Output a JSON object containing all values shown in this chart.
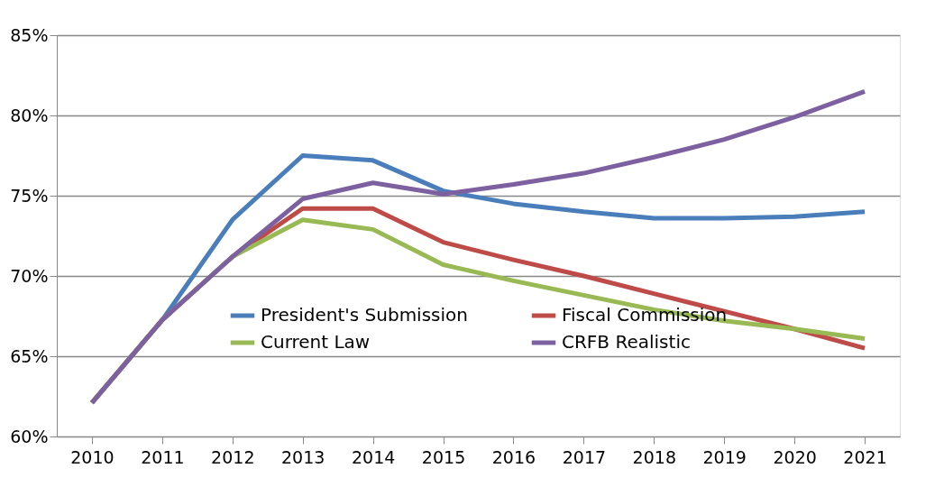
{
  "chart_data": {
    "type": "line",
    "categories": [
      "2010",
      "2011",
      "2012",
      "2013",
      "2014",
      "2015",
      "2016",
      "2017",
      "2018",
      "2019",
      "2020",
      "2021"
    ],
    "series": [
      {
        "name": "President's Submission",
        "color": "#4a7ebb",
        "values": [
          62.1,
          67.25,
          73.5,
          77.5,
          77.2,
          75.3,
          74.5,
          74.0,
          73.6,
          73.6,
          73.7,
          74.0
        ]
      },
      {
        "name": "Fiscal Commission",
        "color": "#be4b48",
        "values": [
          62.1,
          67.25,
          71.2,
          74.2,
          74.2,
          72.1,
          71.0,
          70.0,
          68.9,
          67.8,
          66.7,
          65.5
        ]
      },
      {
        "name": "Current Law",
        "color": "#98b954",
        "values": [
          62.1,
          67.25,
          71.2,
          73.5,
          72.9,
          70.7,
          69.7,
          68.8,
          67.9,
          67.2,
          66.7,
          66.1
        ]
      },
      {
        "name": "CRFB Realistic",
        "color": "#7d60a0",
        "values": [
          62.1,
          67.25,
          71.2,
          74.8,
          75.8,
          75.1,
          75.7,
          76.4,
          77.4,
          78.5,
          79.9,
          81.5
        ]
      }
    ],
    "ylim": [
      60,
      85
    ],
    "yticks": [
      {
        "value": 60,
        "label": "60%"
      },
      {
        "value": 65,
        "label": "65%"
      },
      {
        "value": 70,
        "label": "70%"
      },
      {
        "value": 75,
        "label": "75%"
      },
      {
        "value": 80,
        "label": "80%"
      },
      {
        "value": 85,
        "label": "85%"
      }
    ],
    "grid": "y",
    "legend": "bottom",
    "marker": "none",
    "line_style": "solid"
  }
}
